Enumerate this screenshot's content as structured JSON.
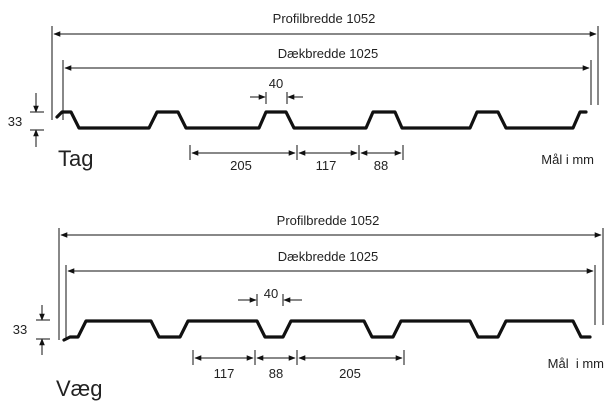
{
  "sections": {
    "tag": {
      "title": "Tag",
      "profile_width": "Profilbredde 1052",
      "cover_width": "Dækbredde 1025",
      "height": "33",
      "crest": "40",
      "dims": [
        "205",
        "117",
        "88"
      ],
      "unit": "Mål i mm"
    },
    "vaeg": {
      "title": "Væg",
      "profile_width": "Profilbredde 1052",
      "cover_width": "Dækbredde 1025",
      "height": "33",
      "crest": "40",
      "dims": [
        "117",
        "88",
        "205"
      ],
      "unit": "Mål  i mm"
    }
  }
}
